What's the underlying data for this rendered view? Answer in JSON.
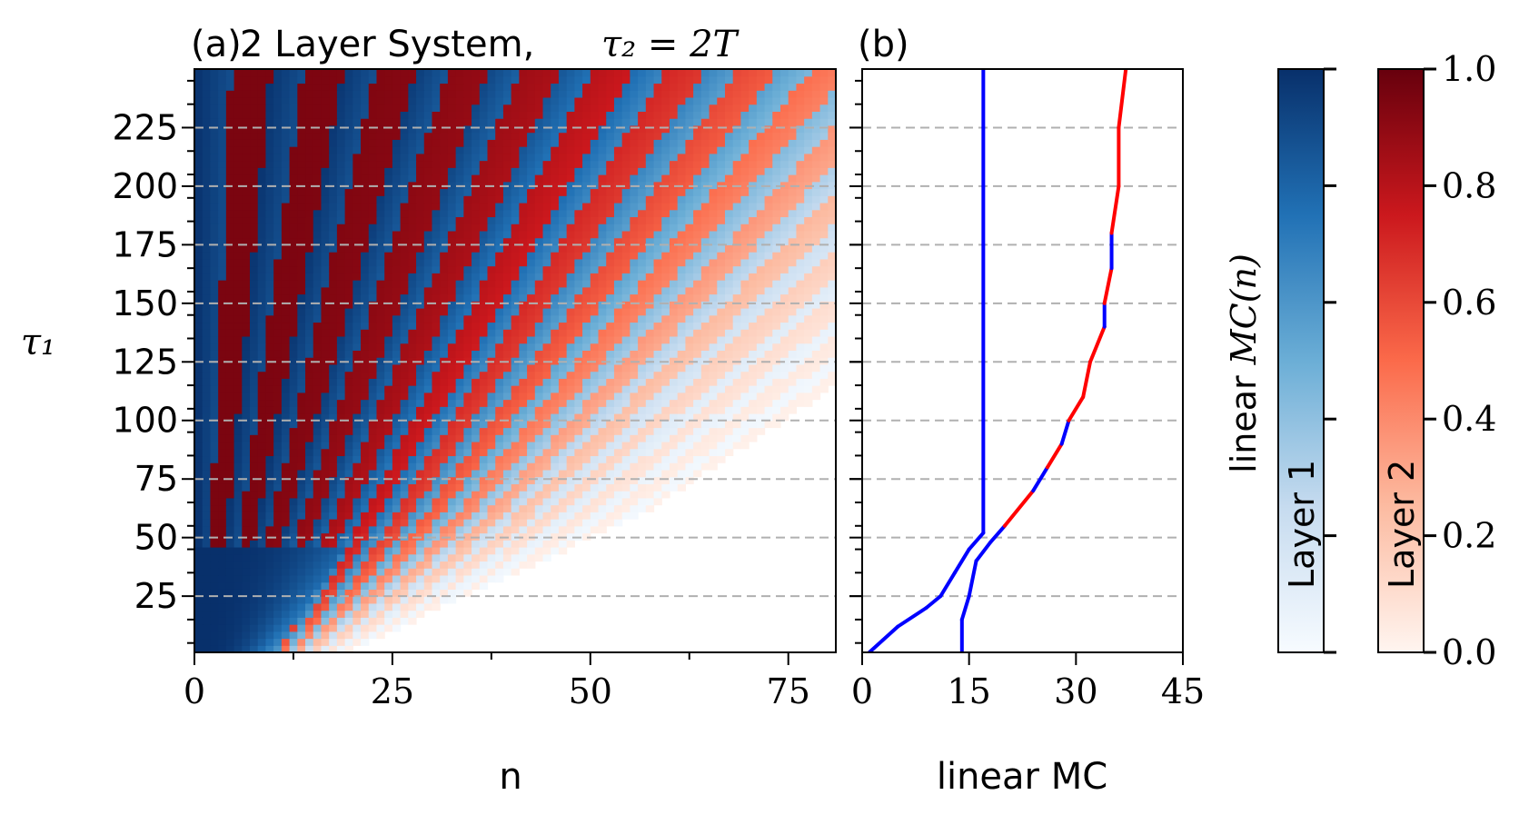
{
  "chart_data": [
    {
      "id": "a",
      "type": "heatmap",
      "panel_label": "(a)",
      "title": "2 Layer System, ",
      "title_math": "τ₂ = 2T",
      "xlabel": "n",
      "ylabel": "τ₁",
      "xlim": [
        0,
        81
      ],
      "ylim": [
        1,
        250
      ],
      "x_ticks": [
        0,
        25,
        50,
        75
      ],
      "y_ticks": [
        25,
        50,
        75,
        100,
        125,
        150,
        175,
        200,
        225
      ],
      "reference_lines_y": [
        25,
        50,
        75,
        100,
        125,
        150,
        175,
        200,
        225
      ],
      "colormap_layer1": "Blues",
      "colormap_layer2": "Reds",
      "value_range": [
        0,
        1
      ],
      "description_pattern": "diagonal bands of memory capacity; band slopes increase with tau1"
    },
    {
      "id": "b",
      "type": "line",
      "panel_label": "(b)",
      "xlabel": "linear MC",
      "xlim": [
        0,
        45
      ],
      "ylim": [
        1,
        250
      ],
      "x_ticks": [
        0,
        15,
        30,
        45
      ],
      "reference_lines_y": [
        25,
        50,
        75,
        100,
        125,
        150,
        175,
        200,
        225
      ],
      "series": [
        {
          "color": "#0000ff",
          "points": [
            [
              1,
              1
            ],
            [
              5,
              12
            ],
            [
              9,
              20
            ],
            [
              11,
              25
            ],
            [
              13,
              35
            ],
            [
              15,
              45
            ],
            [
              17,
              52
            ],
            [
              17,
              75
            ],
            [
              17,
              100
            ],
            [
              17,
              125
            ],
            [
              17,
              150
            ],
            [
              17,
              175
            ],
            [
              17,
              200
            ],
            [
              17,
              225
            ],
            [
              17,
              250
            ]
          ]
        },
        {
          "color_segments": [
            "#0000ff",
            "#ff0000"
          ],
          "points": [
            [
              14,
              1
            ],
            [
              14,
              15
            ],
            [
              15,
              25
            ],
            [
              16,
              40
            ],
            [
              18,
              48
            ],
            [
              20,
              55
            ],
            [
              24,
              70
            ],
            [
              26,
              80
            ],
            [
              28,
              90
            ],
            [
              29,
              100
            ],
            [
              31,
              110
            ],
            [
              32,
              125
            ],
            [
              34,
              140
            ],
            [
              34,
              150
            ],
            [
              35,
              165
            ],
            [
              35,
              180
            ],
            [
              36,
              200
            ],
            [
              36,
              225
            ],
            [
              37,
              250
            ]
          ]
        }
      ]
    },
    {
      "id": "colorbars",
      "type": "colorbar",
      "label": "linear ",
      "label_math": "MC(n)",
      "ticks": [
        "0.0",
        "0.2",
        "0.4",
        "0.6",
        "0.8",
        "1.0"
      ],
      "bars": [
        {
          "name": "Layer 1",
          "colormap": "Blues"
        },
        {
          "name": "Layer 2",
          "colormap": "Reds"
        }
      ]
    }
  ]
}
